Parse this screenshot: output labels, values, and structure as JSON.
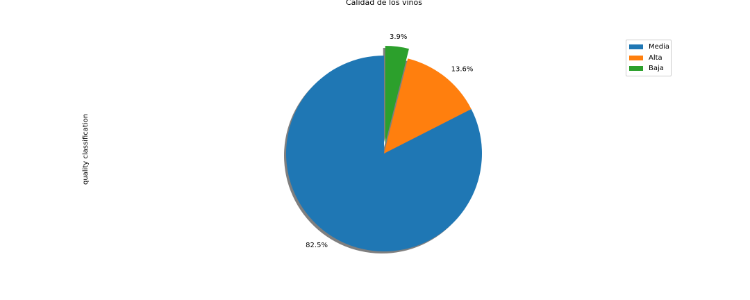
{
  "chart_data": {
    "type": "pie",
    "title": "Calidad de los vinos",
    "ylabel": "quality classification",
    "categories": [
      "Media",
      "Alta",
      "Baja"
    ],
    "values": [
      82.5,
      13.6,
      3.9
    ],
    "labels": [
      "82.5%",
      "13.6%",
      "3.9%"
    ],
    "colors": [
      "#1f77b4",
      "#ff7f0e",
      "#2ca02c"
    ],
    "explode": [
      0,
      0,
      0.1
    ],
    "start_angle_deg": 90,
    "counterclockwise": true,
    "shadow": true,
    "legend": {
      "position": "upper-right",
      "entries": [
        "Media",
        "Alta",
        "Baja"
      ]
    }
  }
}
